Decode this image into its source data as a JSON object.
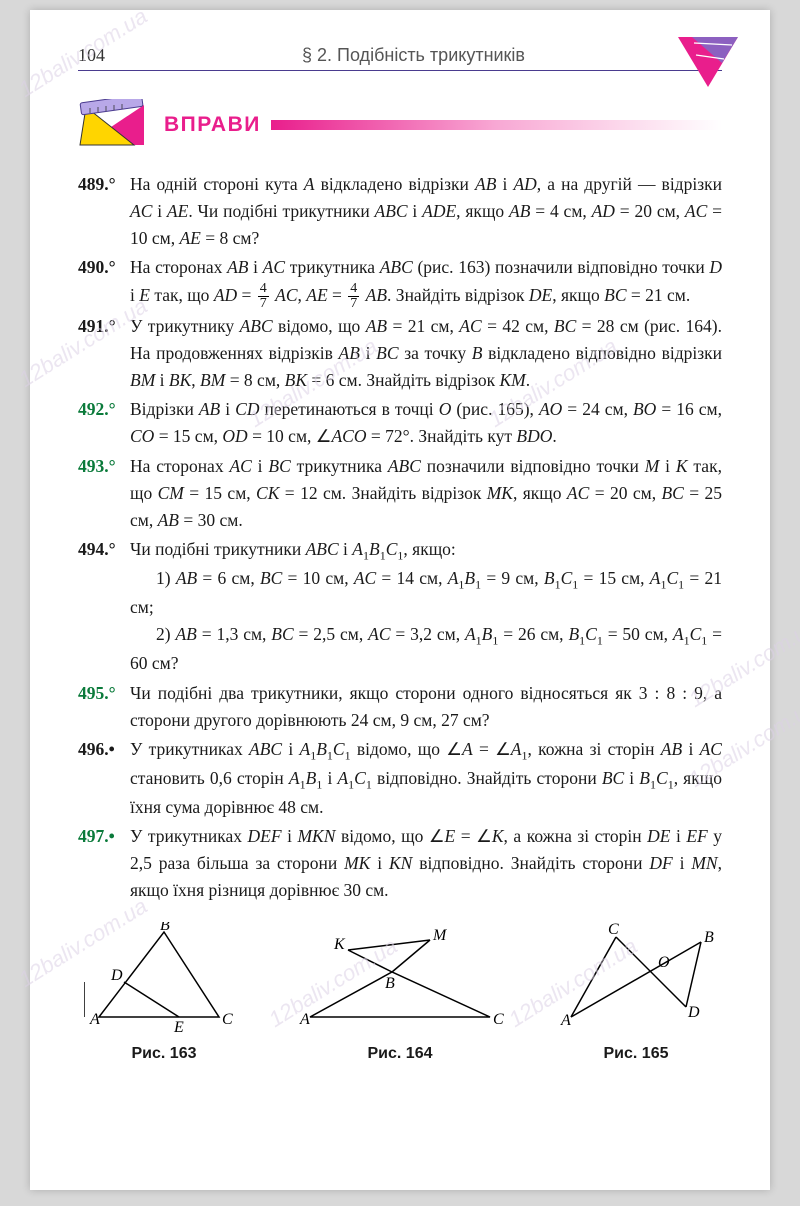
{
  "page_number": "104",
  "section_title": "§ 2. Подібність трикутників",
  "exercises_heading": "ВПРАВИ",
  "watermark_text": "12baliv.com.ua",
  "exercises": [
    {
      "num": "489.°",
      "green": false,
      "body_html": "На одній стороні кута <span class='ital'>A</span> відкладено відрізки <span class='ital'>AB</span> і <span class='ital'>AD</span>, а на другій — відрізки <span class='ital'>AC</span> і <span class='ital'>AE</span>. Чи подібні трикутники <span class='ital'>ABC</span> і <span class='ital'>ADE</span>, якщо <span class='ital'>AB</span> = 4 см, <span class='ital'>AD</span> = 20 см, <span class='ital'>AC</span> = 10 см, <span class='ital'>AE</span> = 8 см?"
    },
    {
      "num": "490.°",
      "green": false,
      "body_html": "На сторонах <span class='ital'>AB</span> і <span class='ital'>AC</span> трикутника <span class='ital'>ABC</span> (рис. 163) позначили відповідно точки <span class='ital'>D</span> і <span class='ital'>E</span> так, що <span class='ital'>AD</span> = <span class='frac'><span class='num'>4</span><span class='den'>7</span></span> <span class='ital'>AC</span>, <span class='ital'>AE</span> = <span class='frac'><span class='num'>4</span><span class='den'>7</span></span> <span class='ital'>AB</span>. Знайдіть відрізок <span class='ital'>DE</span>, якщо <span class='ital'>BC</span> = 21 см."
    },
    {
      "num": "491.°",
      "green": false,
      "body_html": "У трикутнику <span class='ital'>ABC</span> відомо, що <span class='ital'>AB</span> = 21 см, <span class='ital'>AC</span> = 42 см, <span class='ital'>BC</span> = 28 см (рис. 164). На продовженнях відрізків <span class='ital'>AB</span> і <span class='ital'>BC</span> за точку <span class='ital'>B</span> відкладено відповідно відрізки <span class='ital'>BM</span> і <span class='ital'>BK</span>, <span class='ital'>BM</span> = 8 см, <span class='ital'>BK</span> = 6 см. Знайдіть відрізок <span class='ital'>KM</span>."
    },
    {
      "num": "492.°",
      "green": true,
      "body_html": "Відрізки <span class='ital'>AB</span> і <span class='ital'>CD</span> перетинаються в точці <span class='ital'>O</span> (рис. 165), <span class='ital'>AO</span> = 24 см, <span class='ital'>BO</span> = 16 см, <span class='ital'>CO</span> = 15 см, <span class='ital'>OD</span> = 10 см, ∠<span class='ital'>ACO</span> = 72°. Знайдіть кут <span class='ital'>BDO</span>."
    },
    {
      "num": "493.°",
      "green": true,
      "body_html": "На сторонах <span class='ital'>AC</span> і <span class='ital'>BC</span> трикутника <span class='ital'>ABC</span> позначили відповідно точки <span class='ital'>M</span> і <span class='ital'>K</span> так, що <span class='ital'>CM</span> = 15 см, <span class='ital'>CK</span> = 12 см. Знайдіть відрізок <span class='ital'>MK</span>, якщо <span class='ital'>AC</span> = 20 см, <span class='ital'>BC</span> = 25 см, <span class='ital'>AB</span> = 30 см."
    },
    {
      "num": "494.°",
      "green": false,
      "body_html": "Чи подібні трикутники <span class='ital'>ABC</span> і <span class='ital'>A</span><span class='sub'>1</span><span class='ital'>B</span><span class='sub'>1</span><span class='ital'>C</span><span class='sub'>1</span>, якщо:<br><span class='ex-sub'>1) <span class='ital'>AB</span> = 6 см, <span class='ital'>BC</span> = 10 см, <span class='ital'>AC</span> = 14 см, <span class='ital'>A</span><span class='sub'>1</span><span class='ital'>B</span><span class='sub'>1</span> = 9 см, <span class='ital'>B</span><span class='sub'>1</span><span class='ital'>C</span><span class='sub'>1</span> = 15 см, <span class='ital'>A</span><span class='sub'>1</span><span class='ital'>C</span><span class='sub'>1</span> = 21 см;</span><br><span class='ex-sub'>2) <span class='ital'>AB</span> = 1,3 см, <span class='ital'>BC</span> = 2,5 см, <span class='ital'>AC</span> = 3,2 см, <span class='ital'>A</span><span class='sub'>1</span><span class='ital'>B</span><span class='sub'>1</span> = 26 см, <span class='ital'>B</span><span class='sub'>1</span><span class='ital'>C</span><span class='sub'>1</span> = 50 см, <span class='ital'>A</span><span class='sub'>1</span><span class='ital'>C</span><span class='sub'>1</span> = 60 см?</span>"
    },
    {
      "num": "495.°",
      "green": true,
      "body_html": "Чи подібні два трикутники, якщо сторони одного відносяться як 3 : 8 : 9, а сторони другого дорівнюють 24 см, 9 см, 27 см?"
    },
    {
      "num": "496.•",
      "green": false,
      "body_html": "У трикутниках <span class='ital'>ABC</span> і <span class='ital'>A</span><span class='sub'>1</span><span class='ital'>B</span><span class='sub'>1</span><span class='ital'>C</span><span class='sub'>1</span> відомо, що ∠<span class='ital'>A</span> = ∠<span class='ital'>A</span><span class='sub'>1</span>, кожна зі сторін <span class='ital'>AB</span> і <span class='ital'>AC</span> становить 0,6 сторін <span class='ital'>A</span><span class='sub'>1</span><span class='ital'>B</span><span class='sub'>1</span> і <span class='ital'>A</span><span class='sub'>1</span><span class='ital'>C</span><span class='sub'>1</span> відповідно. Знайдіть сторони <span class='ital'>BC</span> і <span class='ital'>B</span><span class='sub'>1</span><span class='ital'>C</span><span class='sub'>1</span>, якщо їхня сума дорівнює 48 см."
    },
    {
      "num": "497.•",
      "green": true,
      "body_html": "У трикутниках <span class='ital'>DEF</span> і <span class='ital'>MKN</span> відомо, що ∠<span class='ital'>E</span> = ∠<span class='ital'>K</span>, а кожна зі сторін <span class='ital'>DE</span> і <span class='ital'>EF</span> у 2,5 раза більша за сторони <span class='ital'>MK</span> і <span class='ital'>KN</span> відповідно. Знайдіть сторони <span class='ital'>DF</span> і <span class='ital'>MN</span>, якщо їхня різниця дорівнює 30 см."
    }
  ],
  "figures": {
    "f163": {
      "caption": "Рис. 163",
      "labels": {
        "A": "A",
        "B": "B",
        "C": "C",
        "D": "D",
        "E": "E"
      }
    },
    "f164": {
      "caption": "Рис. 164",
      "labels": {
        "A": "A",
        "B": "B",
        "C": "C",
        "K": "K",
        "M": "M"
      }
    },
    "f165": {
      "caption": "Рис. 165",
      "labels": {
        "A": "A",
        "B": "B",
        "C": "C",
        "D": "D",
        "O": "O"
      }
    }
  }
}
